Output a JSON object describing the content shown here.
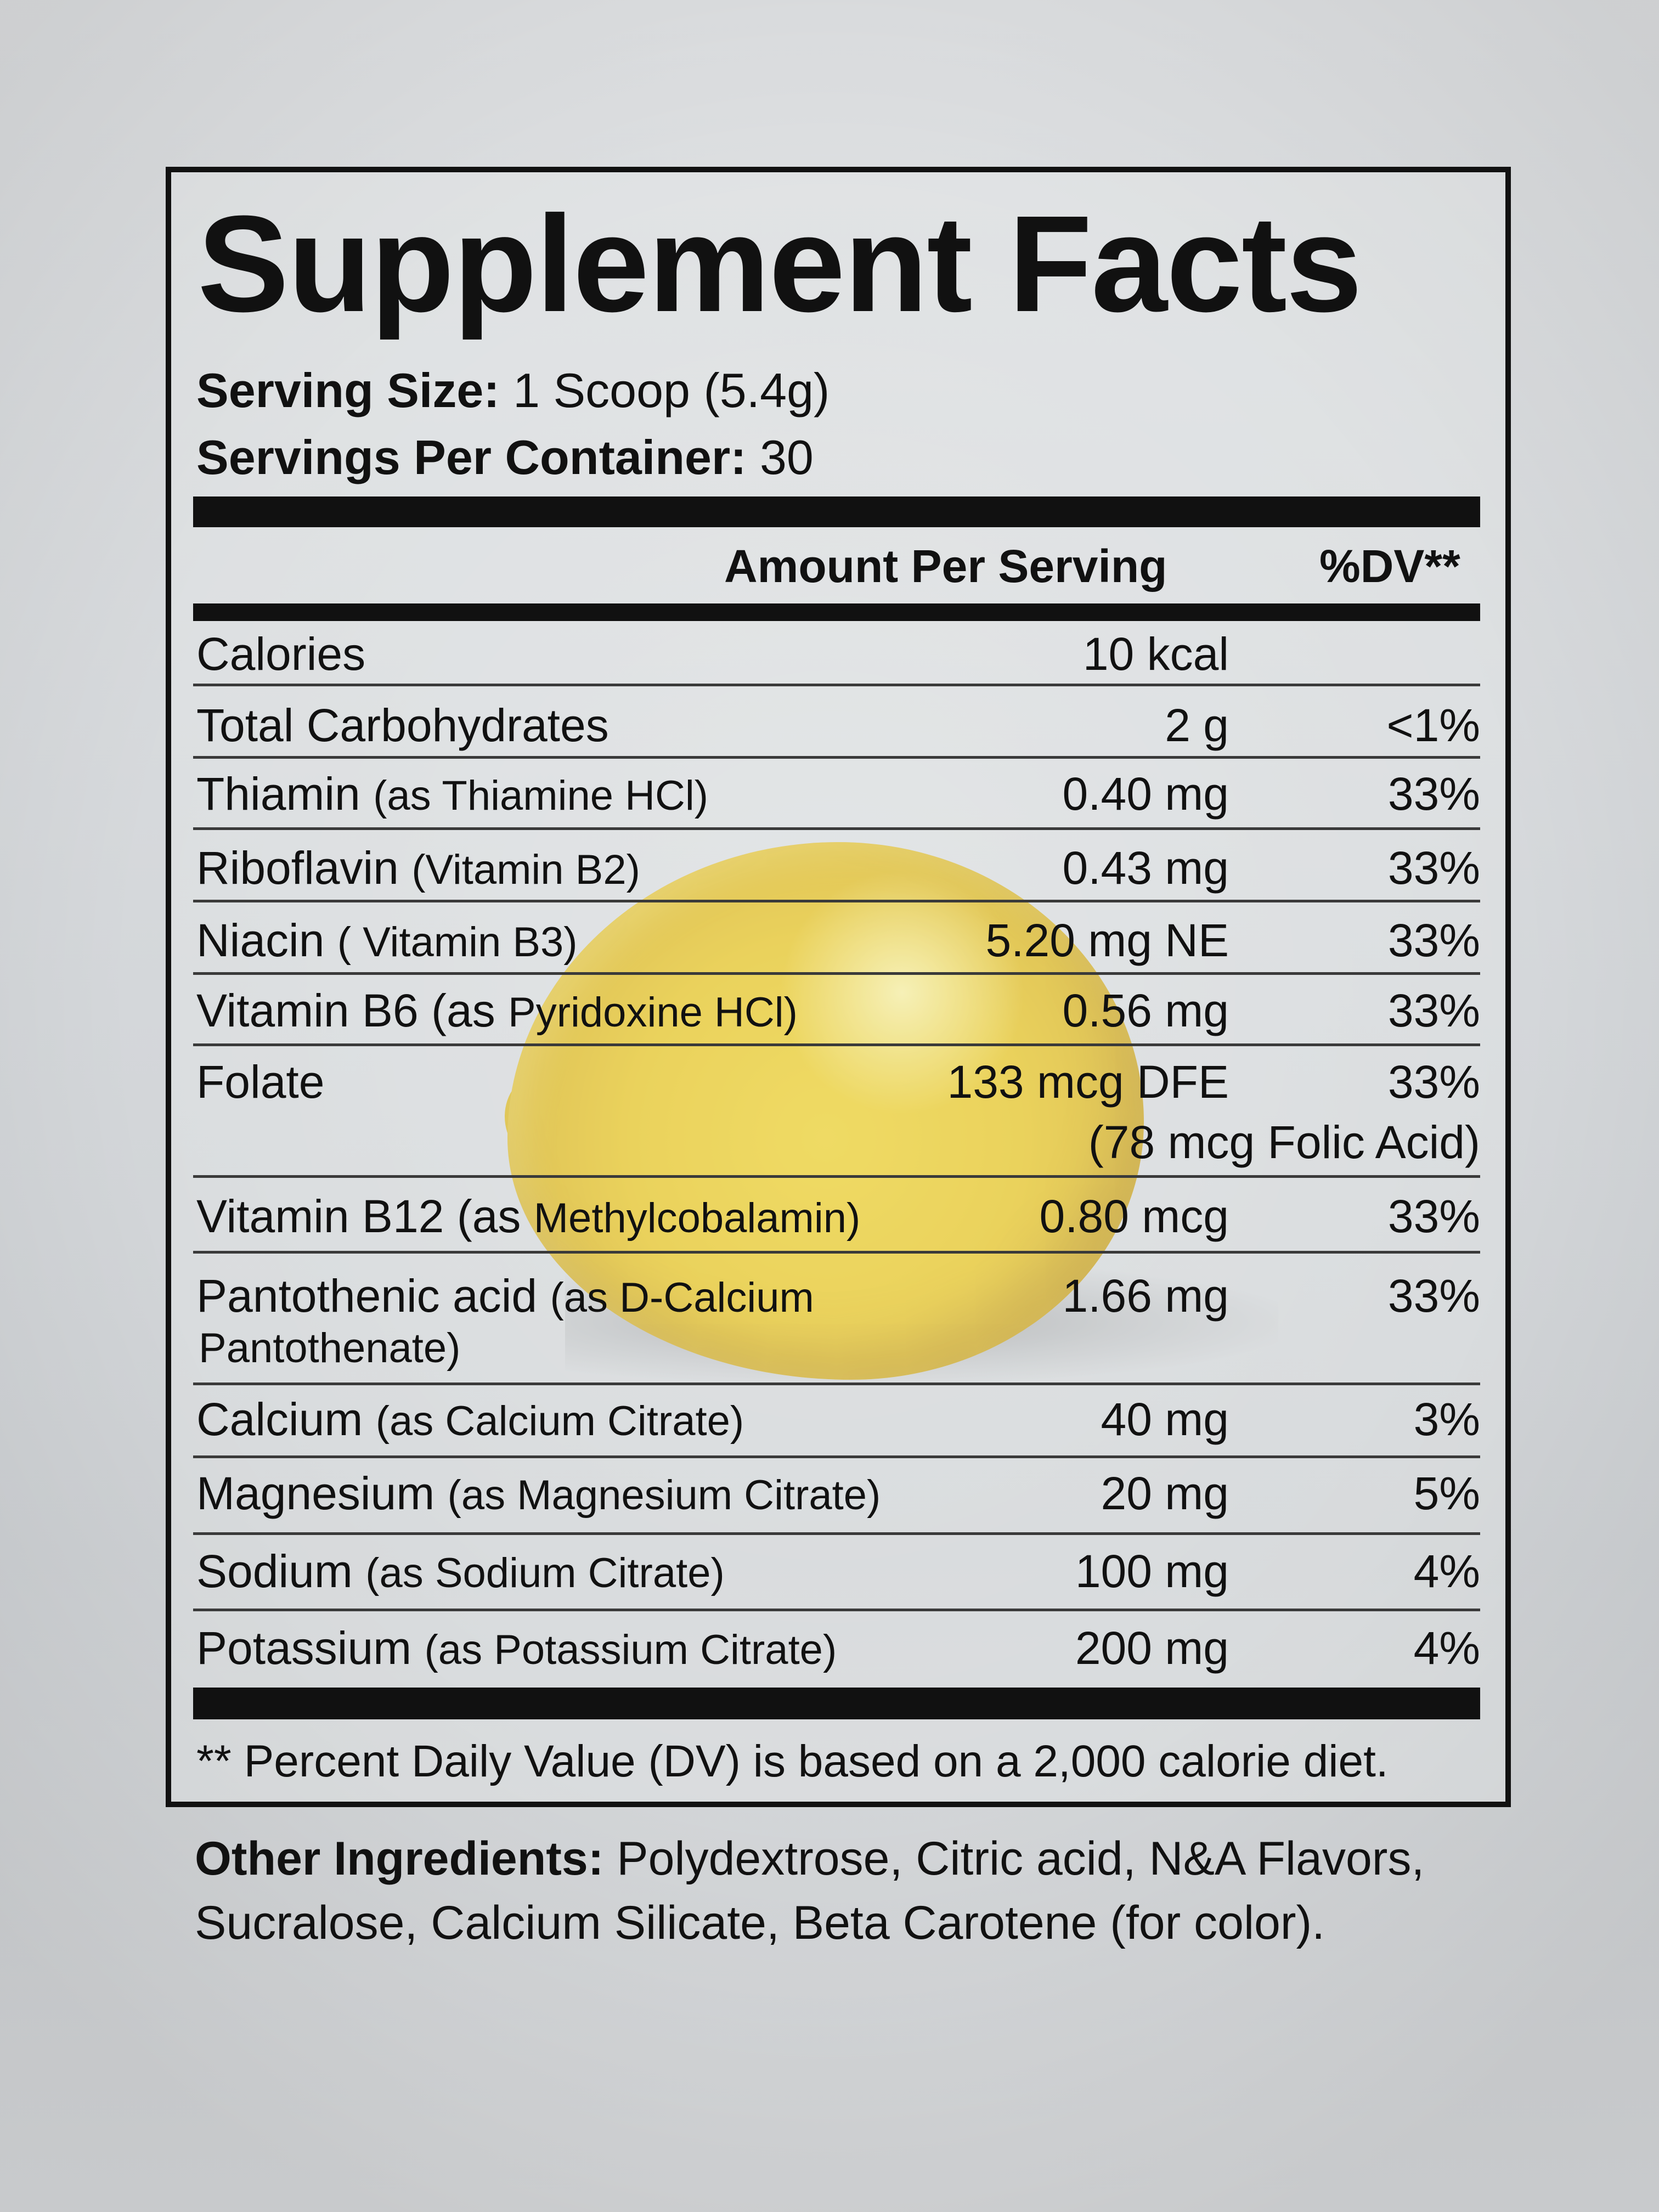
{
  "title": "Supplement Facts",
  "serving_size": {
    "label": "Serving Size:",
    "value": "1 Scoop (5.4g)"
  },
  "servings_per_container": {
    "label": "Servings Per Container:",
    "value": "30"
  },
  "header": {
    "amount": "Amount Per Serving",
    "dv": "%DV**"
  },
  "rows": [
    {
      "name": "Calories",
      "amount": "10 kcal",
      "dv": ""
    },
    {
      "name": "Total Carbohydrates",
      "amount": "2 g",
      "dv": "<1%"
    },
    {
      "name": "Thiamin ",
      "sub": "(as Thiamine HCl)",
      "amount": "0.40 mg",
      "dv": "33%"
    },
    {
      "name": "Riboflavin ",
      "sub": "(Vitamin B2)",
      "amount": "0.43 mg",
      "dv": "33%"
    },
    {
      "name": "Niacin ",
      "sub": "( Vitamin B3)",
      "amount": "5.20 mg NE",
      "dv": "33%"
    },
    {
      "name": "Vitamin B6 (as ",
      "sub": "Pyridoxine HCl)",
      "amount": "0.56 mg",
      "dv": "33%"
    },
    {
      "name": "Folate",
      "amount": "133 mcg DFE",
      "dv": "33%",
      "extra": "(78 mcg Folic Acid)"
    },
    {
      "name": "Vitamin B12 (as ",
      "sub": "Methylcobalamin)",
      "amount": "0.80 mcg",
      "dv": "33%"
    },
    {
      "name": "Pantothenic acid ",
      "sub": "(as D-Calcium",
      "line2": "Pantothenate)",
      "amount": "1.66 mg",
      "dv": "33%"
    },
    {
      "name": "Calcium ",
      "sub": "(as Calcium Citrate)",
      "amount": "40 mg",
      "dv": "3%"
    },
    {
      "name": "Magnesium ",
      "sub": "(as Magnesium Citrate)",
      "amount": "20 mg",
      "dv": "5%"
    },
    {
      "name": "Sodium ",
      "sub": "(as Sodium Citrate)",
      "amount": "100 mg",
      "dv": "4%"
    },
    {
      "name": "Potassium ",
      "sub": "(as Potassium Citrate)",
      "amount": "200 mg",
      "dv": "4%"
    }
  ],
  "footnote": "** Percent Daily Value (DV) is based on a 2,000 calorie diet.",
  "other_ingredients": {
    "label": "Other Ingredients:",
    "line1": " Polydextrose, Citric acid, N&A Flavors,",
    "line2": "Sucralose, Calcium Silicate, Beta Carotene (for color)."
  }
}
